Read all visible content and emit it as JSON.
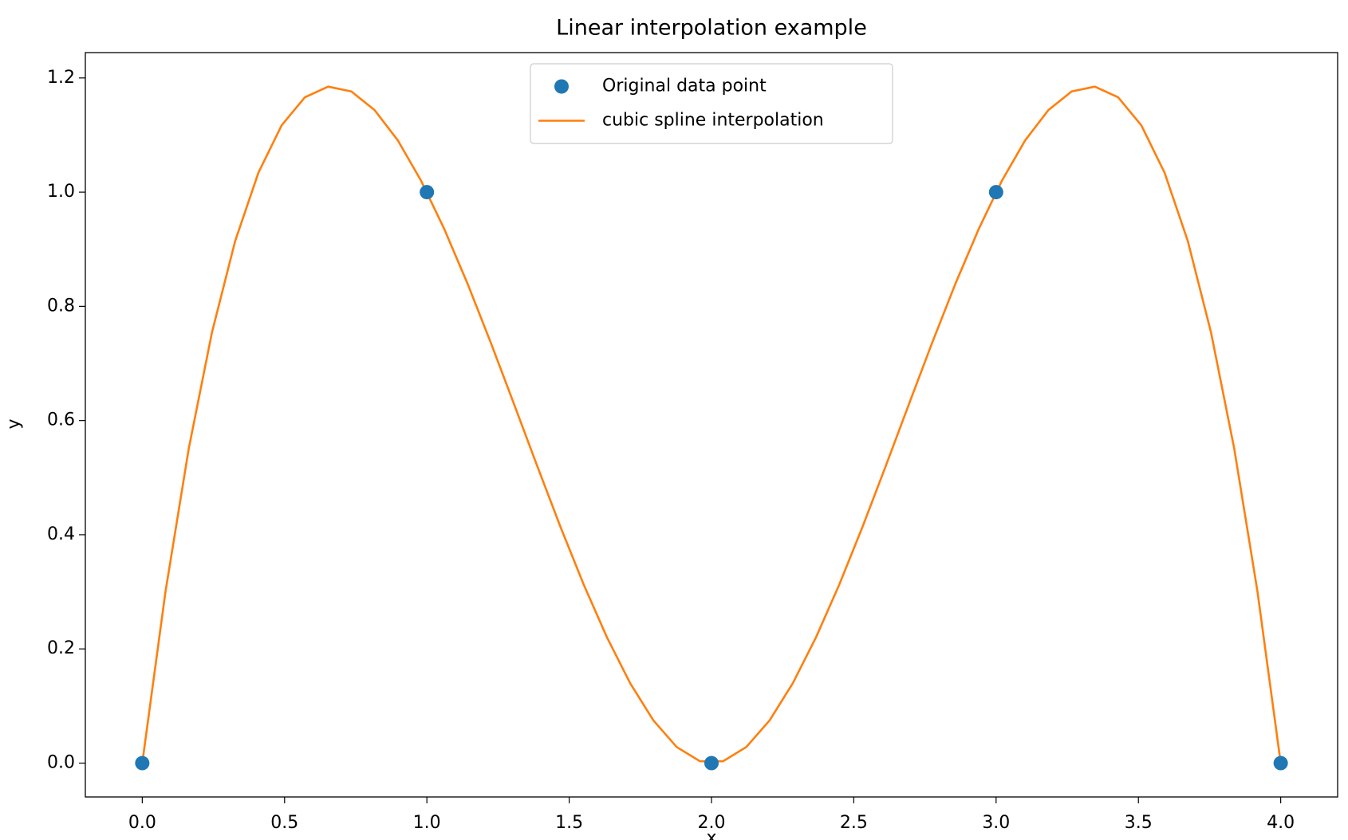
{
  "chart_data": {
    "type": "line",
    "title": "Linear interpolation example",
    "x_label": "x",
    "y_label": "y",
    "legend": "upper center",
    "xlim": [
      -0.2,
      4.2
    ],
    "ylim": [
      -0.0593,
      1.2444
    ],
    "xticks": [
      {
        "value": 0,
        "label": "0.0"
      },
      {
        "value": 0.5,
        "label": "0.5"
      },
      {
        "value": 1,
        "label": "1.0"
      },
      {
        "value": 1.5,
        "label": "1.5"
      },
      {
        "value": 2,
        "label": "2.0"
      },
      {
        "value": 2.5,
        "label": "2.5"
      },
      {
        "value": 3,
        "label": "3.0"
      },
      {
        "value": 3.5,
        "label": "3.5"
      },
      {
        "value": 4,
        "label": "4.0"
      }
    ],
    "yticks": [
      {
        "value": 0,
        "label": "0.0"
      },
      {
        "value": 0.2,
        "label": "0.2"
      },
      {
        "value": 0.4,
        "label": "0.4"
      },
      {
        "value": 0.6,
        "label": "0.6"
      },
      {
        "value": 0.8,
        "label": "0.8"
      },
      {
        "value": 1,
        "label": "1.0"
      },
      {
        "value": 1.2,
        "label": "1.2"
      }
    ],
    "series": [
      {
        "name": "Original data point",
        "type": "scatter",
        "color": "#1f77b4",
        "x": [
          0,
          1,
          2,
          3,
          4
        ],
        "values": [
          0,
          1,
          0,
          1,
          0
        ]
      },
      {
        "name": "cubic spline interpolation",
        "type": "line",
        "color": "#ff7f0e",
        "x": [
          0,
          0.0816,
          0.1633,
          0.2449,
          0.3265,
          0.4082,
          0.4898,
          0.5714,
          0.6531,
          0.7347,
          0.8163,
          0.898,
          0.9796,
          1.0612,
          1.1429,
          1.2245,
          1.3061,
          1.3878,
          1.4694,
          1.551,
          1.6327,
          1.7143,
          1.7959,
          1.8776,
          1.9592,
          2.0408,
          2.1224,
          2.2041,
          2.2857,
          2.3673,
          2.449,
          2.5306,
          2.6122,
          2.6939,
          2.7755,
          2.8571,
          2.9388,
          3.0204,
          3.102,
          3.1837,
          3.2653,
          3.3469,
          3.4286,
          3.5102,
          3.5918,
          3.6735,
          3.7551,
          3.8367,
          3.9184,
          4
        ],
        "values": [
          0,
          0.3004,
          0.5508,
          0.7544,
          0.9145,
          1.0343,
          1.1171,
          1.1662,
          1.1848,
          1.1763,
          1.1437,
          1.0906,
          1.02,
          0.9353,
          0.8397,
          0.7364,
          0.6289,
          0.5202,
          0.4137,
          0.3127,
          0.2203,
          0.1399,
          0.0748,
          0.0282,
          0.0033,
          0.0033,
          0.0282,
          0.0748,
          0.1399,
          0.2203,
          0.3127,
          0.4137,
          0.5202,
          0.6289,
          0.7364,
          0.8397,
          0.9353,
          1.02,
          1.0906,
          1.1437,
          1.1763,
          1.1848,
          1.1662,
          1.1171,
          1.0343,
          0.9145,
          0.7544,
          0.5508,
          0.3004,
          0
        ]
      }
    ]
  }
}
